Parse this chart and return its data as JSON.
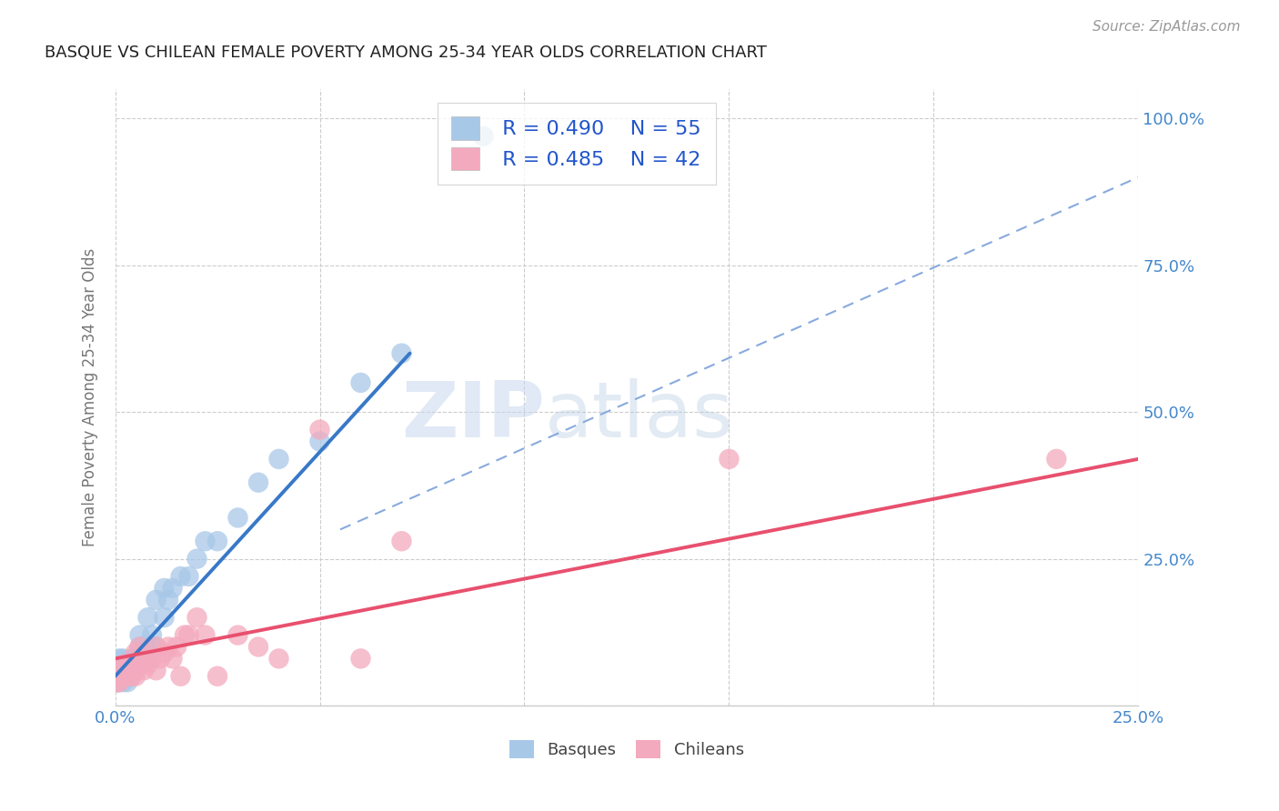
{
  "title": "BASQUE VS CHILEAN FEMALE POVERTY AMONG 25-34 YEAR OLDS CORRELATION CHART",
  "source": "Source: ZipAtlas.com",
  "ylabel": "Female Poverty Among 25-34 Year Olds",
  "xlim": [
    0.0,
    0.25
  ],
  "ylim": [
    0.0,
    1.05
  ],
  "xtick_vals": [
    0.0,
    0.05,
    0.1,
    0.15,
    0.2,
    0.25
  ],
  "xtick_labels": [
    "0.0%",
    "",
    "",
    "",
    "",
    "25.0%"
  ],
  "ytick_vals": [
    0.0,
    0.25,
    0.5,
    0.75,
    1.0
  ],
  "right_ytick_labels": [
    "",
    "25.0%",
    "50.0%",
    "75.0%",
    "100.0%"
  ],
  "basque_color": "#a8c8e8",
  "chilean_color": "#f4aabe",
  "basque_line_color": "#3878c8",
  "chilean_line_color": "#e8506e",
  "dashed_line_color": "#88aadd",
  "legend_R_basque": "R = 0.490",
  "legend_N_basque": "N = 55",
  "legend_R_chilean": "R = 0.485",
  "legend_N_chilean": "N = 42",
  "title_color": "#222222",
  "axis_label_color": "#777777",
  "tick_color_right": "#4488cc",
  "tick_color_bottom": "#4488cc",
  "background_color": "#ffffff",
  "grid_color": "#cccccc",
  "basque_x": [
    0.0005,
    0.0008,
    0.001,
    0.001,
    0.001,
    0.001,
    0.001,
    0.0015,
    0.0015,
    0.002,
    0.002,
    0.002,
    0.002,
    0.002,
    0.002,
    0.002,
    0.003,
    0.003,
    0.003,
    0.003,
    0.003,
    0.004,
    0.004,
    0.004,
    0.004,
    0.005,
    0.005,
    0.005,
    0.006,
    0.006,
    0.006,
    0.006,
    0.007,
    0.007,
    0.008,
    0.008,
    0.009,
    0.01,
    0.01,
    0.012,
    0.012,
    0.013,
    0.014,
    0.016,
    0.018,
    0.02,
    0.022,
    0.025,
    0.03,
    0.035,
    0.04,
    0.05,
    0.06,
    0.07,
    0.09
  ],
  "basque_y": [
    0.04,
    0.04,
    0.04,
    0.05,
    0.06,
    0.06,
    0.08,
    0.05,
    0.06,
    0.04,
    0.05,
    0.05,
    0.06,
    0.06,
    0.07,
    0.08,
    0.04,
    0.05,
    0.06,
    0.06,
    0.07,
    0.05,
    0.06,
    0.07,
    0.08,
    0.06,
    0.07,
    0.08,
    0.07,
    0.08,
    0.1,
    0.12,
    0.08,
    0.1,
    0.1,
    0.15,
    0.12,
    0.1,
    0.18,
    0.15,
    0.2,
    0.18,
    0.2,
    0.22,
    0.22,
    0.25,
    0.28,
    0.28,
    0.32,
    0.38,
    0.42,
    0.45,
    0.55,
    0.6,
    0.97
  ],
  "chilean_x": [
    0.0005,
    0.001,
    0.001,
    0.001,
    0.0015,
    0.002,
    0.002,
    0.002,
    0.003,
    0.003,
    0.003,
    0.004,
    0.004,
    0.005,
    0.005,
    0.005,
    0.006,
    0.006,
    0.007,
    0.008,
    0.009,
    0.01,
    0.01,
    0.011,
    0.012,
    0.013,
    0.014,
    0.015,
    0.016,
    0.017,
    0.018,
    0.02,
    0.022,
    0.025,
    0.03,
    0.035,
    0.04,
    0.05,
    0.06,
    0.07,
    0.15,
    0.23
  ],
  "chilean_y": [
    0.04,
    0.04,
    0.05,
    0.06,
    0.05,
    0.05,
    0.06,
    0.07,
    0.05,
    0.06,
    0.07,
    0.05,
    0.07,
    0.05,
    0.06,
    0.09,
    0.07,
    0.1,
    0.06,
    0.07,
    0.08,
    0.06,
    0.1,
    0.08,
    0.09,
    0.1,
    0.08,
    0.1,
    0.05,
    0.12,
    0.12,
    0.15,
    0.12,
    0.05,
    0.12,
    0.1,
    0.08,
    0.47,
    0.08,
    0.28,
    0.42,
    0.42
  ],
  "basque_line_x": [
    0.0,
    0.072
  ],
  "basque_line_y": [
    0.05,
    0.6
  ],
  "chilean_line_x": [
    0.0,
    0.25
  ],
  "chilean_line_y": [
    0.08,
    0.42
  ],
  "dashed_line_x": [
    0.055,
    0.25
  ],
  "dashed_line_y": [
    0.3,
    0.9
  ]
}
